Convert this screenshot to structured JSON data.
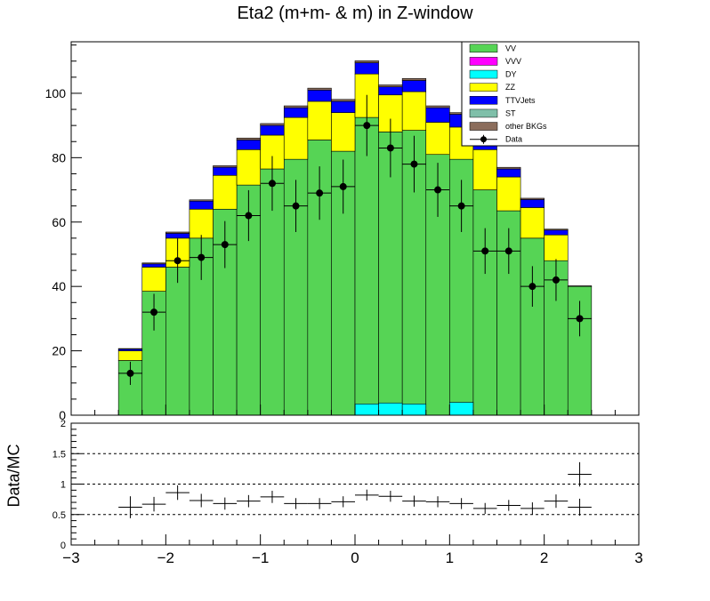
{
  "chart_data": [
    {
      "type": "bar",
      "title": "Eta2 (m+m- & m) in Z-window",
      "stacked": true,
      "x_bin_centers": [
        -2.375,
        -2.125,
        -1.875,
        -1.625,
        -1.375,
        -1.125,
        -0.875,
        -0.625,
        -0.375,
        -0.125,
        0.125,
        0.375,
        0.625,
        0.875,
        1.125,
        1.375,
        1.625,
        1.875,
        2.125,
        2.375
      ],
      "bin_width": 0.25,
      "xlim": [
        -3,
        3
      ],
      "ylim": [
        0,
        116
      ],
      "yticks": [
        0,
        20,
        40,
        60,
        80,
        100
      ],
      "series": [
        {
          "name": "VV",
          "color": "#56d455",
          "values": [
            17,
            38.5,
            46,
            55,
            64,
            71.5,
            76.5,
            79.5,
            85.5,
            82,
            92.5,
            88,
            88.5,
            81,
            79.5,
            70,
            63.5,
            55,
            48,
            40
          ]
        },
        {
          "name": "VVV",
          "color": "#ff00ff",
          "values": [
            0,
            0,
            0,
            0,
            0,
            0,
            0,
            0,
            0,
            0,
            0,
            0,
            0,
            0,
            0,
            0,
            0,
            0,
            0,
            0
          ]
        },
        {
          "name": "DY",
          "color": "#00ffff",
          "values": [
            0,
            0,
            0,
            0,
            0,
            0,
            0,
            0,
            0,
            0,
            0,
            0,
            0,
            0,
            0,
            0,
            0,
            0,
            0,
            0
          ]
        },
        {
          "name": "ZZ",
          "color": "#ffff00",
          "values": [
            3,
            7.5,
            9,
            9,
            10.5,
            11,
            10.5,
            13,
            12,
            12,
            13.5,
            11.5,
            12,
            10,
            10,
            12.5,
            10.5,
            9.5,
            8,
            0
          ]
        },
        {
          "name": "TTVJets",
          "color": "#0000ff",
          "values": [
            0.5,
            1,
            1.5,
            2.5,
            2.5,
            3,
            3,
            3,
            3.5,
            3.5,
            3.5,
            2.5,
            3.5,
            4.5,
            4,
            2.5,
            2.5,
            2.5,
            1.5,
            0
          ]
        },
        {
          "name": "ST",
          "color": "#7fbfa9",
          "values": [
            0,
            0,
            0,
            0,
            0,
            0,
            0,
            0,
            0,
            0,
            0,
            0,
            0,
            0,
            0,
            0,
            0,
            0,
            0,
            0
          ]
        },
        {
          "name": "other BKGs",
          "color": "#8b6d5c",
          "values": [
            0.2,
            0.3,
            0.4,
            0.4,
            0.5,
            0.6,
            0.6,
            0.6,
            0.6,
            0.6,
            0.6,
            0.6,
            0.6,
            0.6,
            0.5,
            0.5,
            0.5,
            0.4,
            0.3,
            0.2
          ]
        }
      ],
      "dy_overlay": {
        "name": "DY",
        "color": "#00ffff",
        "values": [
          0,
          0,
          0,
          0,
          0,
          0,
          0,
          0,
          0,
          0,
          3.5,
          3.8,
          3.5,
          0,
          4,
          0,
          0,
          0,
          0,
          0
        ],
        "note_bins": [
          10,
          11,
          12,
          14
        ]
      },
      "data": {
        "name": "Data",
        "values": [
          13,
          32,
          48,
          49,
          53,
          62,
          72,
          65,
          69,
          71,
          90,
          83,
          78,
          70,
          65,
          51,
          51,
          40,
          42,
          30
        ],
        "errors": [
          3.6,
          5.7,
          6.9,
          7,
          7.3,
          7.9,
          8.5,
          8.1,
          8.3,
          8.4,
          9.5,
          9.1,
          8.8,
          8.4,
          8.1,
          7.1,
          7.1,
          6.3,
          6.5,
          5.5
        ]
      },
      "legend_position": "top-right"
    },
    {
      "type": "scatter",
      "ylabel": "Data/MC",
      "xlim": [
        -3,
        3
      ],
      "ylim": [
        0,
        2
      ],
      "yticks": [
        0,
        0.5,
        1,
        1.5,
        2
      ],
      "ytick_labels": [
        "0",
        "0.5",
        "1",
        "1.5",
        "2"
      ],
      "xticks": [
        -3,
        -2,
        -1,
        0,
        1,
        2,
        3
      ],
      "xtick_labels": [
        "−3",
        "−2",
        "−1",
        "0",
        "1",
        "2",
        "3"
      ],
      "reference_lines": [
        0.5,
        1,
        1.5
      ],
      "x": [
        -2.375,
        -2.125,
        -1.875,
        -1.625,
        -1.375,
        -1.125,
        -0.875,
        -0.625,
        -0.375,
        -0.125,
        0.125,
        0.375,
        0.625,
        0.875,
        1.125,
        1.375,
        1.625,
        1.875,
        2.125,
        2.375
      ],
      "values": [
        0.62,
        0.67,
        0.86,
        0.73,
        0.68,
        0.72,
        0.79,
        0.68,
        0.68,
        0.71,
        0.82,
        0.8,
        0.72,
        0.71,
        0.68,
        0.6,
        0.65,
        0.6,
        0.72,
        0.62
      ],
      "errors": [
        0.18,
        0.12,
        0.12,
        0.11,
        0.1,
        0.1,
        0.1,
        0.09,
        0.09,
        0.09,
        0.09,
        0.09,
        0.09,
        0.09,
        0.09,
        0.09,
        0.09,
        0.1,
        0.11,
        0.14
      ],
      "extra_point": {
        "x": 2.375,
        "y": 1.16,
        "err": 0.2
      }
    }
  ]
}
